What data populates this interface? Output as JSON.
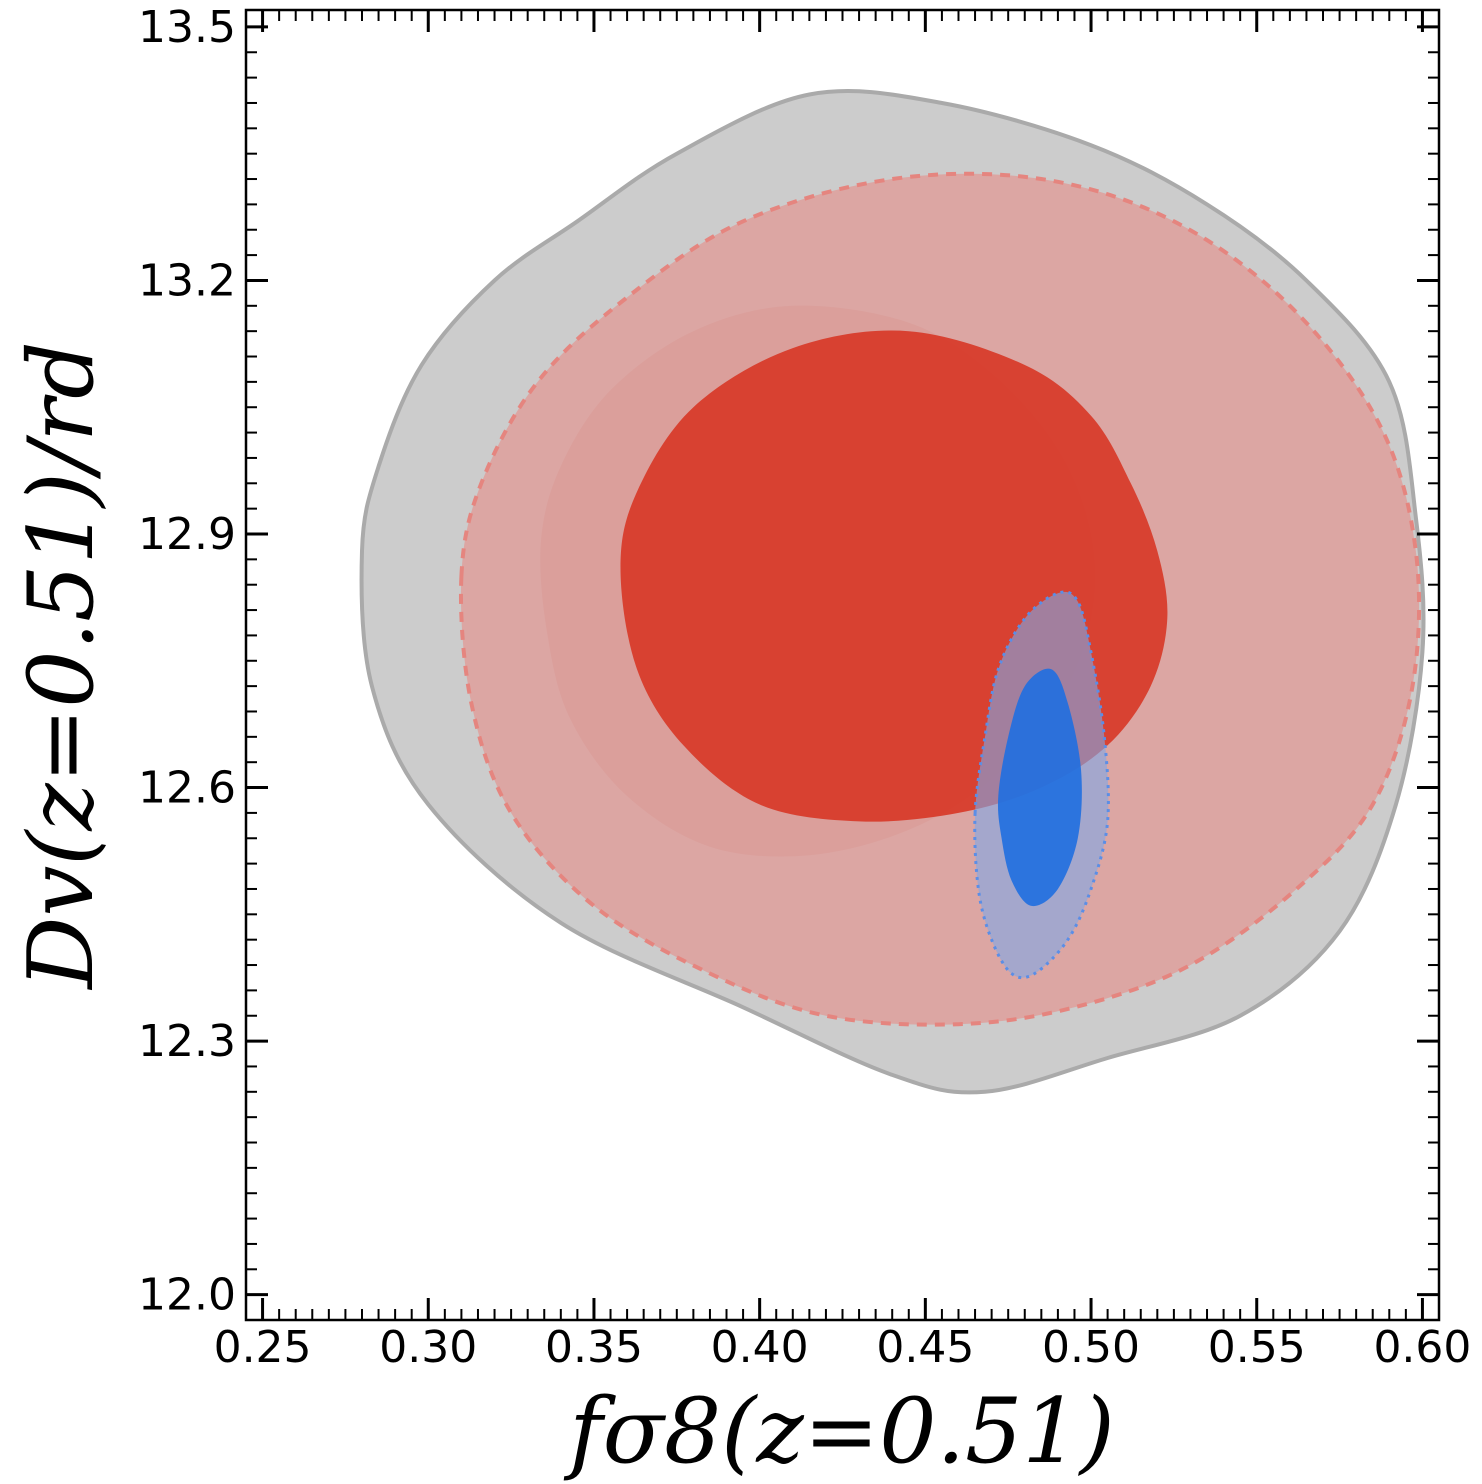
{
  "chart_data": {
    "type": "contour",
    "xlabel": "fσ8(z=0.51)",
    "ylabel": "Dv(z=0.51)/rd",
    "xlim": [
      0.245,
      0.605
    ],
    "ylim": [
      11.97,
      13.52
    ],
    "xticks": [
      "0.25",
      "0.30",
      "0.35",
      "0.40",
      "0.45",
      "0.50",
      "0.55",
      "0.60"
    ],
    "yticks": [
      "12.0",
      "12.3",
      "12.6",
      "12.9",
      "13.2",
      "13.5"
    ],
    "xtick_values": [
      0.25,
      0.3,
      0.35,
      0.4,
      0.45,
      0.5,
      0.55,
      0.6
    ],
    "ytick_values": [
      12.0,
      12.3,
      12.6,
      12.9,
      13.2,
      13.5
    ],
    "grid": false,
    "series": [
      {
        "color": "#cccccc",
        "edge": "#aaaaaa",
        "levels": [
          {
            "points": [
              [
                0.28,
                12.88
              ],
              [
                0.285,
                12.98
              ],
              [
                0.298,
                13.1
              ],
              [
                0.32,
                13.2
              ],
              [
                0.345,
                13.27
              ],
              [
                0.375,
                13.35
              ],
              [
                0.415,
                13.42
              ],
              [
                0.455,
                13.41
              ],
              [
                0.5,
                13.36
              ],
              [
                0.535,
                13.29
              ],
              [
                0.565,
                13.2
              ],
              [
                0.59,
                13.08
              ],
              [
                0.598,
                12.92
              ],
              [
                0.6,
                12.76
              ],
              [
                0.592,
                12.58
              ],
              [
                0.575,
                12.43
              ],
              [
                0.545,
                12.33
              ],
              [
                0.505,
                12.28
              ],
              [
                0.468,
                12.24
              ],
              [
                0.44,
                12.26
              ],
              [
                0.395,
                12.34
              ],
              [
                0.34,
                12.44
              ],
              [
                0.3,
                12.58
              ],
              [
                0.283,
                12.72
              ]
            ]
          }
        ]
      },
      {
        "color": "#e58e89",
        "edge": "#e5857f",
        "levels": [
          {
            "points": [
              [
                0.31,
                12.85
              ],
              [
                0.316,
                12.96
              ],
              [
                0.333,
                13.08
              ],
              [
                0.36,
                13.18
              ],
              [
                0.395,
                13.27
              ],
              [
                0.44,
                13.32
              ],
              [
                0.485,
                13.32
              ],
              [
                0.525,
                13.27
              ],
              [
                0.56,
                13.17
              ],
              [
                0.587,
                13.03
              ],
              [
                0.598,
                12.88
              ],
              [
                0.597,
                12.72
              ],
              [
                0.585,
                12.58
              ],
              [
                0.562,
                12.48
              ],
              [
                0.53,
                12.39
              ],
              [
                0.495,
                12.34
              ],
              [
                0.46,
                12.32
              ],
              [
                0.42,
                12.33
              ],
              [
                0.385,
                12.38
              ],
              [
                0.35,
                12.46
              ],
              [
                0.325,
                12.57
              ],
              [
                0.313,
                12.7
              ]
            ]
          },
          {
            "points": [
              [
                0.334,
                12.89
              ],
              [
                0.34,
                12.98
              ],
              [
                0.355,
                13.07
              ],
              [
                0.38,
                13.14
              ],
              [
                0.41,
                13.17
              ],
              [
                0.445,
                13.15
              ],
              [
                0.47,
                13.09
              ],
              [
                0.49,
                13.0
              ],
              [
                0.5,
                12.9
              ],
              [
                0.5,
                12.8
              ],
              [
                0.49,
                12.7
              ],
              [
                0.47,
                12.61
              ],
              [
                0.445,
                12.55
              ],
              [
                0.415,
                12.52
              ],
              [
                0.385,
                12.53
              ],
              [
                0.36,
                12.59
              ],
              [
                0.343,
                12.68
              ],
              [
                0.336,
                12.78
              ]
            ]
          }
        ]
      },
      {
        "color": "#d7301f",
        "edge": "#d7301f",
        "levels": [
          {
            "points": [
              [
                0.358,
                12.86
              ],
              [
                0.363,
                12.95
              ],
              [
                0.38,
                13.05
              ],
              [
                0.41,
                13.12
              ],
              [
                0.445,
                13.14
              ],
              [
                0.48,
                13.1
              ],
              [
                0.5,
                13.04
              ],
              [
                0.512,
                12.96
              ],
              [
                0.52,
                12.88
              ],
              [
                0.523,
                12.8
              ],
              [
                0.518,
                12.72
              ],
              [
                0.505,
                12.65
              ],
              [
                0.485,
                12.6
              ],
              [
                0.46,
                12.57
              ],
              [
                0.43,
                12.56
              ],
              [
                0.4,
                12.58
              ],
              [
                0.377,
                12.65
              ],
              [
                0.363,
                12.74
              ]
            ]
          }
        ]
      },
      {
        "color": "#7fa8e8",
        "edge": "#5b8ee6",
        "levels": [
          {
            "points": [
              [
                0.465,
                12.57
              ],
              [
                0.468,
                12.66
              ],
              [
                0.472,
                12.74
              ],
              [
                0.48,
                12.8
              ],
              [
                0.49,
                12.83
              ],
              [
                0.496,
                12.82
              ],
              [
                0.5,
                12.76
              ],
              [
                0.504,
                12.66
              ],
              [
                0.505,
                12.56
              ],
              [
                0.5,
                12.48
              ],
              [
                0.493,
                12.42
              ],
              [
                0.483,
                12.38
              ],
              [
                0.476,
                12.38
              ],
              [
                0.47,
                12.42
              ],
              [
                0.466,
                12.48
              ]
            ]
          },
          {
            "points": [
              [
                0.472,
                12.59
              ],
              [
                0.475,
                12.66
              ],
              [
                0.48,
                12.72
              ],
              [
                0.488,
                12.74
              ],
              [
                0.493,
                12.7
              ],
              [
                0.497,
                12.62
              ],
              [
                0.496,
                12.54
              ],
              [
                0.49,
                12.48
              ],
              [
                0.482,
                12.46
              ],
              [
                0.476,
                12.49
              ],
              [
                0.473,
                12.54
              ]
            ]
          }
        ]
      }
    ]
  }
}
